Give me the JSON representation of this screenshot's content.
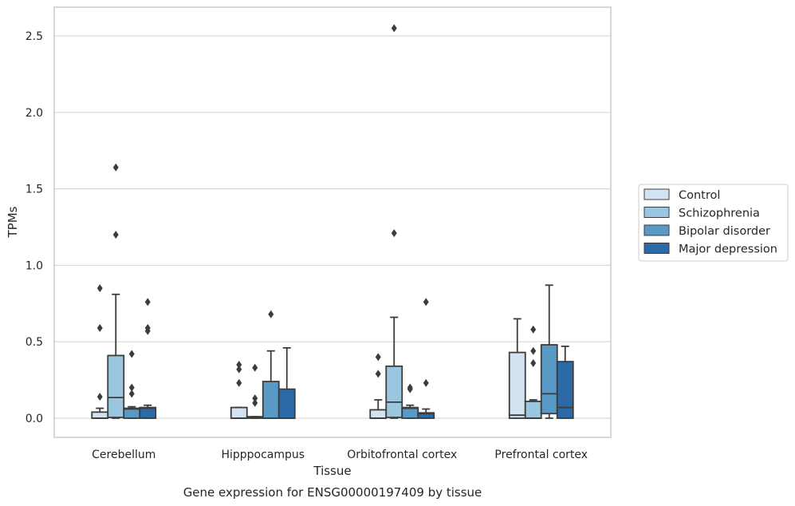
{
  "chart_data": {
    "type": "box",
    "title": "Gene expression for ENSG00000197409 by tissue",
    "xlabel": "Tissue",
    "ylabel": "TPMs",
    "ylim": [
      -0.125,
      2.68
    ],
    "yticks": [
      "0.0",
      "0.5",
      "1.0",
      "1.5",
      "2.0",
      "2.5"
    ],
    "grid": "horizontal",
    "legend_position": "right",
    "categories": [
      "Cerebellum",
      "Hipppocampus",
      "Orbitofrontal cortex",
      "Prefrontal cortex"
    ],
    "series": [
      {
        "name": "Control",
        "color": "#d3e2f1",
        "boxes": [
          {
            "whislo": 0.0,
            "q1": 0.0,
            "med": 0.0,
            "q3": 0.04,
            "whishi": 0.065,
            "fliers": [
              0.85,
              0.59,
              0.14
            ]
          },
          {
            "whislo": 0.0,
            "q1": 0.0,
            "med": 0.0,
            "q3": 0.07,
            "whishi": 0.07,
            "fliers": [
              0.35,
              0.32,
              0.23
            ]
          },
          {
            "whislo": 0.0,
            "q1": 0.0,
            "med": 0.0,
            "q3": 0.055,
            "whishi": 0.12,
            "fliers": [
              0.4,
              0.29
            ]
          },
          {
            "whislo": 0.0,
            "q1": 0.0,
            "med": 0.02,
            "q3": 0.43,
            "whishi": 0.65,
            "fliers": []
          }
        ]
      },
      {
        "name": "Schizophrenia",
        "color": "#9ac6df",
        "boxes": [
          {
            "whislo": 0.0,
            "q1": 0.005,
            "med": 0.135,
            "q3": 0.41,
            "whishi": 0.81,
            "fliers": [
              1.64,
              1.2
            ]
          },
          {
            "whislo": 0.0,
            "q1": 0.0,
            "med": 0.005,
            "q3": 0.01,
            "whishi": 0.01,
            "fliers": [
              0.33,
              0.13,
              0.1
            ]
          },
          {
            "whislo": 0.0,
            "q1": 0.005,
            "med": 0.105,
            "q3": 0.34,
            "whishi": 0.66,
            "fliers": [
              2.55,
              1.21
            ]
          },
          {
            "whislo": 0.0,
            "q1": 0.0,
            "med": 0.0,
            "q3": 0.11,
            "whishi": 0.12,
            "fliers": [
              0.58,
              0.44,
              0.36
            ]
          }
        ]
      },
      {
        "name": "Bipolar disorder",
        "color": "#5899c5",
        "boxes": [
          {
            "whislo": 0.0,
            "q1": 0.0,
            "med": 0.06,
            "q3": 0.065,
            "whishi": 0.075,
            "fliers": [
              0.42,
              0.2,
              0.16
            ]
          },
          {
            "whislo": 0.0,
            "q1": 0.0,
            "med": 0.0,
            "q3": 0.24,
            "whishi": 0.44,
            "fliers": [
              0.68
            ]
          },
          {
            "whislo": 0.0,
            "q1": 0.0,
            "med": 0.065,
            "q3": 0.07,
            "whishi": 0.085,
            "fliers": [
              0.2,
              0.19
            ]
          },
          {
            "whislo": 0.0,
            "q1": 0.03,
            "med": 0.16,
            "q3": 0.48,
            "whishi": 0.87,
            "fliers": []
          }
        ]
      },
      {
        "name": "Major depression",
        "color": "#2b6aa6",
        "boxes": [
          {
            "whislo": 0.0,
            "q1": 0.0,
            "med": 0.065,
            "q3": 0.07,
            "whishi": 0.085,
            "fliers": [
              0.76,
              0.59,
              0.57
            ]
          },
          {
            "whislo": 0.0,
            "q1": 0.0,
            "med": 0.0,
            "q3": 0.19,
            "whishi": 0.46,
            "fliers": []
          },
          {
            "whislo": 0.0,
            "q1": 0.0,
            "med": 0.03,
            "q3": 0.035,
            "whishi": 0.06,
            "fliers": [
              0.76,
              0.23
            ]
          },
          {
            "whislo": 0.0,
            "q1": 0.0,
            "med": 0.07,
            "q3": 0.37,
            "whishi": 0.47,
            "fliers": []
          }
        ]
      }
    ]
  }
}
